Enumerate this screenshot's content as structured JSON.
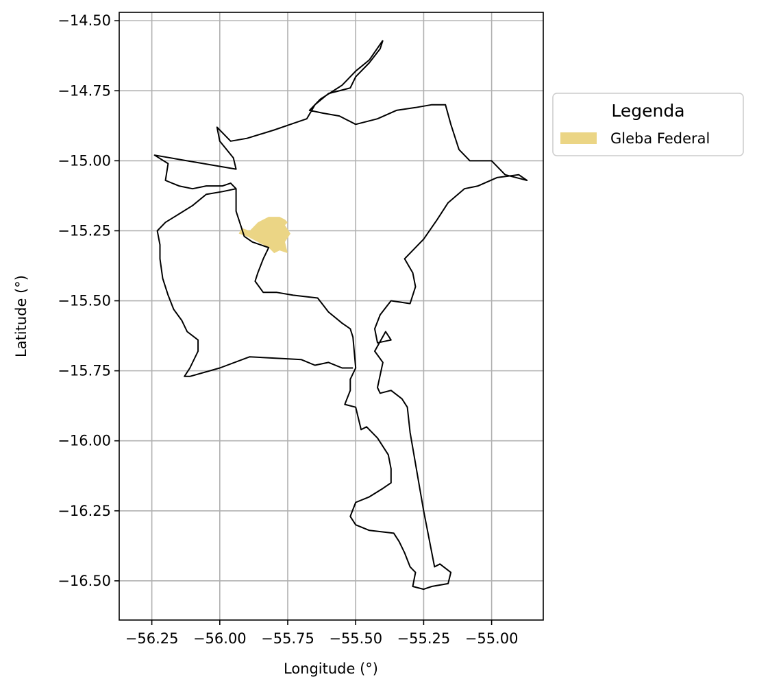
{
  "chart_data": {
    "type": "map",
    "xlabel": "Longitude (°)",
    "ylabel": "Latitude (°)",
    "xlim": [
      -56.37,
      -54.81
    ],
    "ylim": [
      -16.64,
      -14.47
    ],
    "grid": true,
    "x_ticks": [
      -56.25,
      -56.0,
      -55.75,
      -55.5,
      -55.25,
      -55.0
    ],
    "x_tick_labels": [
      "−56.25",
      "−56.00",
      "−55.75",
      "−55.50",
      "−55.25",
      "−55.00"
    ],
    "y_ticks": [
      -14.5,
      -14.75,
      -15.0,
      -15.25,
      -15.5,
      -15.75,
      -16.0,
      -16.25,
      -16.5
    ],
    "y_tick_labels": [
      "−14.50",
      "−14.75",
      "−15.00",
      "−15.25",
      "−15.50",
      "−15.75",
      "−16.00",
      "−16.25",
      "−16.50"
    ],
    "legend": {
      "title": "Legenda",
      "placement": "outside-upper-right",
      "entries": [
        {
          "label": "Gleba Federal",
          "color": "#ebd585"
        }
      ]
    },
    "layers": [
      {
        "name": "municipality-boundary",
        "type": "polygon-outline",
        "stroke": "#000000",
        "coordinates": [
          [
            -55.4,
            -14.57
          ],
          [
            -55.41,
            -14.6
          ],
          [
            -55.45,
            -14.65
          ],
          [
            -55.5,
            -14.7
          ],
          [
            -55.52,
            -14.74
          ],
          [
            -55.6,
            -14.76
          ],
          [
            -55.65,
            -14.8
          ],
          [
            -55.68,
            -14.85
          ],
          [
            -55.74,
            -14.87
          ],
          [
            -55.8,
            -14.89
          ],
          [
            -55.9,
            -14.92
          ],
          [
            -55.96,
            -14.93
          ],
          [
            -56.01,
            -14.88
          ],
          [
            -56.0,
            -14.93
          ],
          [
            -55.95,
            -14.99
          ],
          [
            -55.94,
            -15.03
          ],
          [
            -56.06,
            -15.01
          ],
          [
            -56.24,
            -14.98
          ],
          [
            -56.19,
            -15.01
          ],
          [
            -56.2,
            -15.07
          ],
          [
            -56.15,
            -15.09
          ],
          [
            -56.1,
            -15.1
          ],
          [
            -56.05,
            -15.09
          ],
          [
            -55.99,
            -15.09
          ],
          [
            -55.96,
            -15.08
          ],
          [
            -55.94,
            -15.1
          ],
          [
            -55.94,
            -15.18
          ],
          [
            -55.92,
            -15.24
          ],
          [
            -55.91,
            -15.27
          ],
          [
            -55.88,
            -15.29
          ],
          [
            -55.85,
            -15.3
          ],
          [
            -55.82,
            -15.31
          ],
          [
            -55.84,
            -15.35
          ],
          [
            -55.86,
            -15.4
          ],
          [
            -55.87,
            -15.43
          ],
          [
            -55.84,
            -15.47
          ],
          [
            -55.79,
            -15.47
          ],
          [
            -55.73,
            -15.48
          ],
          [
            -55.64,
            -15.49
          ],
          [
            -55.6,
            -15.54
          ],
          [
            -55.55,
            -15.58
          ],
          [
            -55.52,
            -15.6
          ],
          [
            -55.51,
            -15.63
          ],
          [
            -55.5,
            -15.74
          ],
          [
            -55.52,
            -15.78
          ],
          [
            -55.52,
            -15.82
          ],
          [
            -55.54,
            -15.87
          ],
          [
            -55.5,
            -15.88
          ],
          [
            -55.48,
            -15.96
          ],
          [
            -55.46,
            -15.95
          ],
          [
            -55.42,
            -15.99
          ],
          [
            -55.38,
            -16.05
          ],
          [
            -55.37,
            -16.1
          ],
          [
            -55.37,
            -16.15
          ],
          [
            -55.4,
            -16.17
          ],
          [
            -55.45,
            -16.2
          ],
          [
            -55.5,
            -16.22
          ],
          [
            -55.52,
            -16.27
          ],
          [
            -55.5,
            -16.3
          ],
          [
            -55.45,
            -16.32
          ],
          [
            -55.36,
            -16.33
          ],
          [
            -55.34,
            -16.36
          ],
          [
            -55.32,
            -16.4
          ],
          [
            -55.3,
            -16.45
          ],
          [
            -55.28,
            -16.47
          ],
          [
            -55.29,
            -16.52
          ],
          [
            -55.25,
            -16.53
          ],
          [
            -55.22,
            -16.52
          ],
          [
            -55.16,
            -16.51
          ],
          [
            -55.15,
            -16.47
          ],
          [
            -55.19,
            -16.44
          ],
          [
            -55.21,
            -16.45
          ],
          [
            -55.25,
            -16.25
          ],
          [
            -55.3,
            -15.97
          ],
          [
            -55.31,
            -15.88
          ],
          [
            -55.33,
            -15.85
          ],
          [
            -55.37,
            -15.82
          ],
          [
            -55.41,
            -15.83
          ],
          [
            -55.42,
            -15.81
          ],
          [
            -55.4,
            -15.72
          ],
          [
            -55.43,
            -15.68
          ],
          [
            -55.39,
            -15.61
          ],
          [
            -55.37,
            -15.64
          ],
          [
            -55.42,
            -15.65
          ],
          [
            -55.43,
            -15.6
          ],
          [
            -55.41,
            -15.55
          ],
          [
            -55.37,
            -15.5
          ],
          [
            -55.3,
            -15.51
          ],
          [
            -55.28,
            -15.45
          ],
          [
            -55.29,
            -15.4
          ],
          [
            -55.32,
            -15.35
          ],
          [
            -55.25,
            -15.28
          ],
          [
            -55.2,
            -15.21
          ],
          [
            -55.16,
            -15.15
          ],
          [
            -55.1,
            -15.1
          ],
          [
            -55.05,
            -15.09
          ],
          [
            -54.98,
            -15.06
          ],
          [
            -54.9,
            -15.05
          ],
          [
            -54.87,
            -15.07
          ],
          [
            -54.95,
            -15.05
          ],
          [
            -55.0,
            -15.0
          ],
          [
            -55.08,
            -15.0
          ],
          [
            -55.12,
            -14.96
          ],
          [
            -55.15,
            -14.87
          ],
          [
            -55.17,
            -14.8
          ],
          [
            -55.22,
            -14.8
          ],
          [
            -55.28,
            -14.81
          ],
          [
            -55.35,
            -14.82
          ],
          [
            -55.42,
            -14.85
          ],
          [
            -55.5,
            -14.87
          ],
          [
            -55.56,
            -14.84
          ],
          [
            -55.62,
            -14.83
          ],
          [
            -55.67,
            -14.82
          ],
          [
            -55.63,
            -14.78
          ],
          [
            -55.55,
            -14.73
          ],
          [
            -55.5,
            -14.68
          ],
          [
            -55.45,
            -14.64
          ],
          [
            -55.4,
            -14.57
          ]
        ]
      },
      {
        "name": "southwest-lobe",
        "type": "polygon-outline",
        "stroke": "#000000",
        "coordinates": [
          [
            -55.94,
            -15.1
          ],
          [
            -55.99,
            -15.11
          ],
          [
            -56.05,
            -15.12
          ],
          [
            -56.1,
            -15.16
          ],
          [
            -56.15,
            -15.19
          ],
          [
            -56.2,
            -15.22
          ],
          [
            -56.23,
            -15.25
          ],
          [
            -56.22,
            -15.3
          ],
          [
            -56.22,
            -15.35
          ],
          [
            -56.21,
            -15.42
          ],
          [
            -56.19,
            -15.48
          ],
          [
            -56.17,
            -15.53
          ],
          [
            -56.14,
            -15.57
          ],
          [
            -56.12,
            -15.61
          ],
          [
            -56.08,
            -15.64
          ],
          [
            -56.08,
            -15.68
          ],
          [
            -56.11,
            -15.74
          ],
          [
            -56.13,
            -15.77
          ],
          [
            -56.11,
            -15.77
          ],
          [
            -56.0,
            -15.74
          ],
          [
            -55.89,
            -15.7
          ],
          [
            -55.7,
            -15.71
          ],
          [
            -55.65,
            -15.73
          ],
          [
            -55.6,
            -15.72
          ],
          [
            -55.55,
            -15.74
          ],
          [
            -55.51,
            -15.74
          ]
        ]
      }
    ],
    "highlight": {
      "name": "Gleba Federal",
      "fill": "#ebd585",
      "coordinates": [
        [
          -55.92,
          -15.24
        ],
        [
          -55.89,
          -15.25
        ],
        [
          -55.86,
          -15.22
        ],
        [
          -55.84,
          -15.21
        ],
        [
          -55.82,
          -15.2
        ],
        [
          -55.78,
          -15.2
        ],
        [
          -55.76,
          -15.21
        ],
        [
          -55.75,
          -15.22
        ],
        [
          -55.76,
          -15.23
        ],
        [
          -55.74,
          -15.26
        ],
        [
          -55.76,
          -15.29
        ],
        [
          -55.75,
          -15.33
        ],
        [
          -55.78,
          -15.32
        ],
        [
          -55.8,
          -15.33
        ],
        [
          -55.82,
          -15.31
        ],
        [
          -55.86,
          -15.29
        ],
        [
          -55.9,
          -15.27
        ],
        [
          -55.93,
          -15.26
        ],
        [
          -55.92,
          -15.24
        ]
      ]
    }
  }
}
